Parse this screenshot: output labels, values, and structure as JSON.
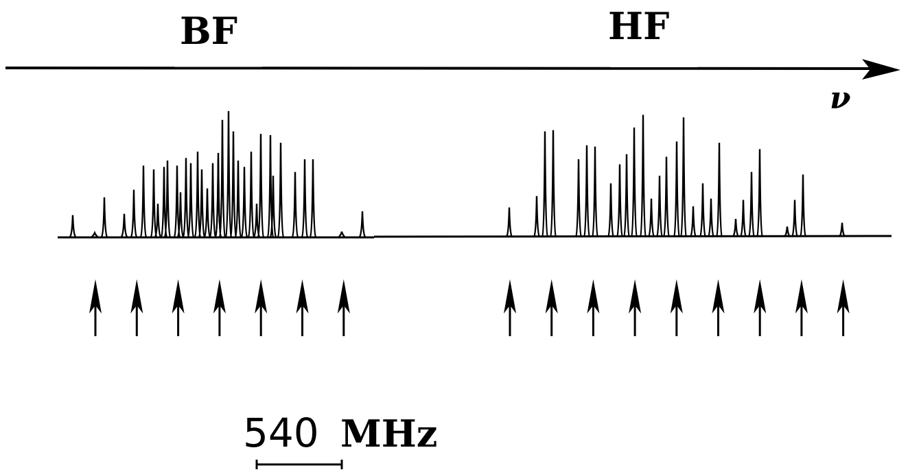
{
  "labels": {
    "band_left": "BF",
    "band_right": "HF",
    "axis_symbol": "ν",
    "scale_value": "540",
    "scale_unit": "MHz"
  },
  "colors": {
    "ink": "#000000",
    "background": "#ffffff"
  },
  "spectrum": {
    "bf_line_heights": [
      0.17,
      0.03,
      0.31,
      0.18,
      0.37,
      0.56,
      0.53,
      0.55,
      0.26,
      0.6,
      0.56,
      0.62,
      0.35,
      0.58,
      0.67,
      0.53,
      0.38,
      0.58,
      0.66,
      0.92,
      0.61,
      0.99,
      0.83,
      0.6,
      0.55,
      0.67,
      0.81,
      0.26,
      0.8,
      0.48,
      0.74,
      0.51,
      0.61,
      0.61,
      0.04,
      0.2
    ],
    "hf_line_heights": [
      0.23,
      0.32,
      0.83,
      0.84,
      0.61,
      0.72,
      0.71,
      0.42,
      0.57,
      0.65,
      0.86,
      0.96,
      0.3,
      0.48,
      0.63,
      0.75,
      0.94,
      0.24,
      0.42,
      0.3,
      0.74,
      0.14,
      0.29,
      0.51,
      0.69,
      0.08,
      0.29,
      0.49,
      0.11
    ]
  },
  "markers": {
    "bf_arrow_count": 7,
    "hf_arrow_count": 9
  }
}
